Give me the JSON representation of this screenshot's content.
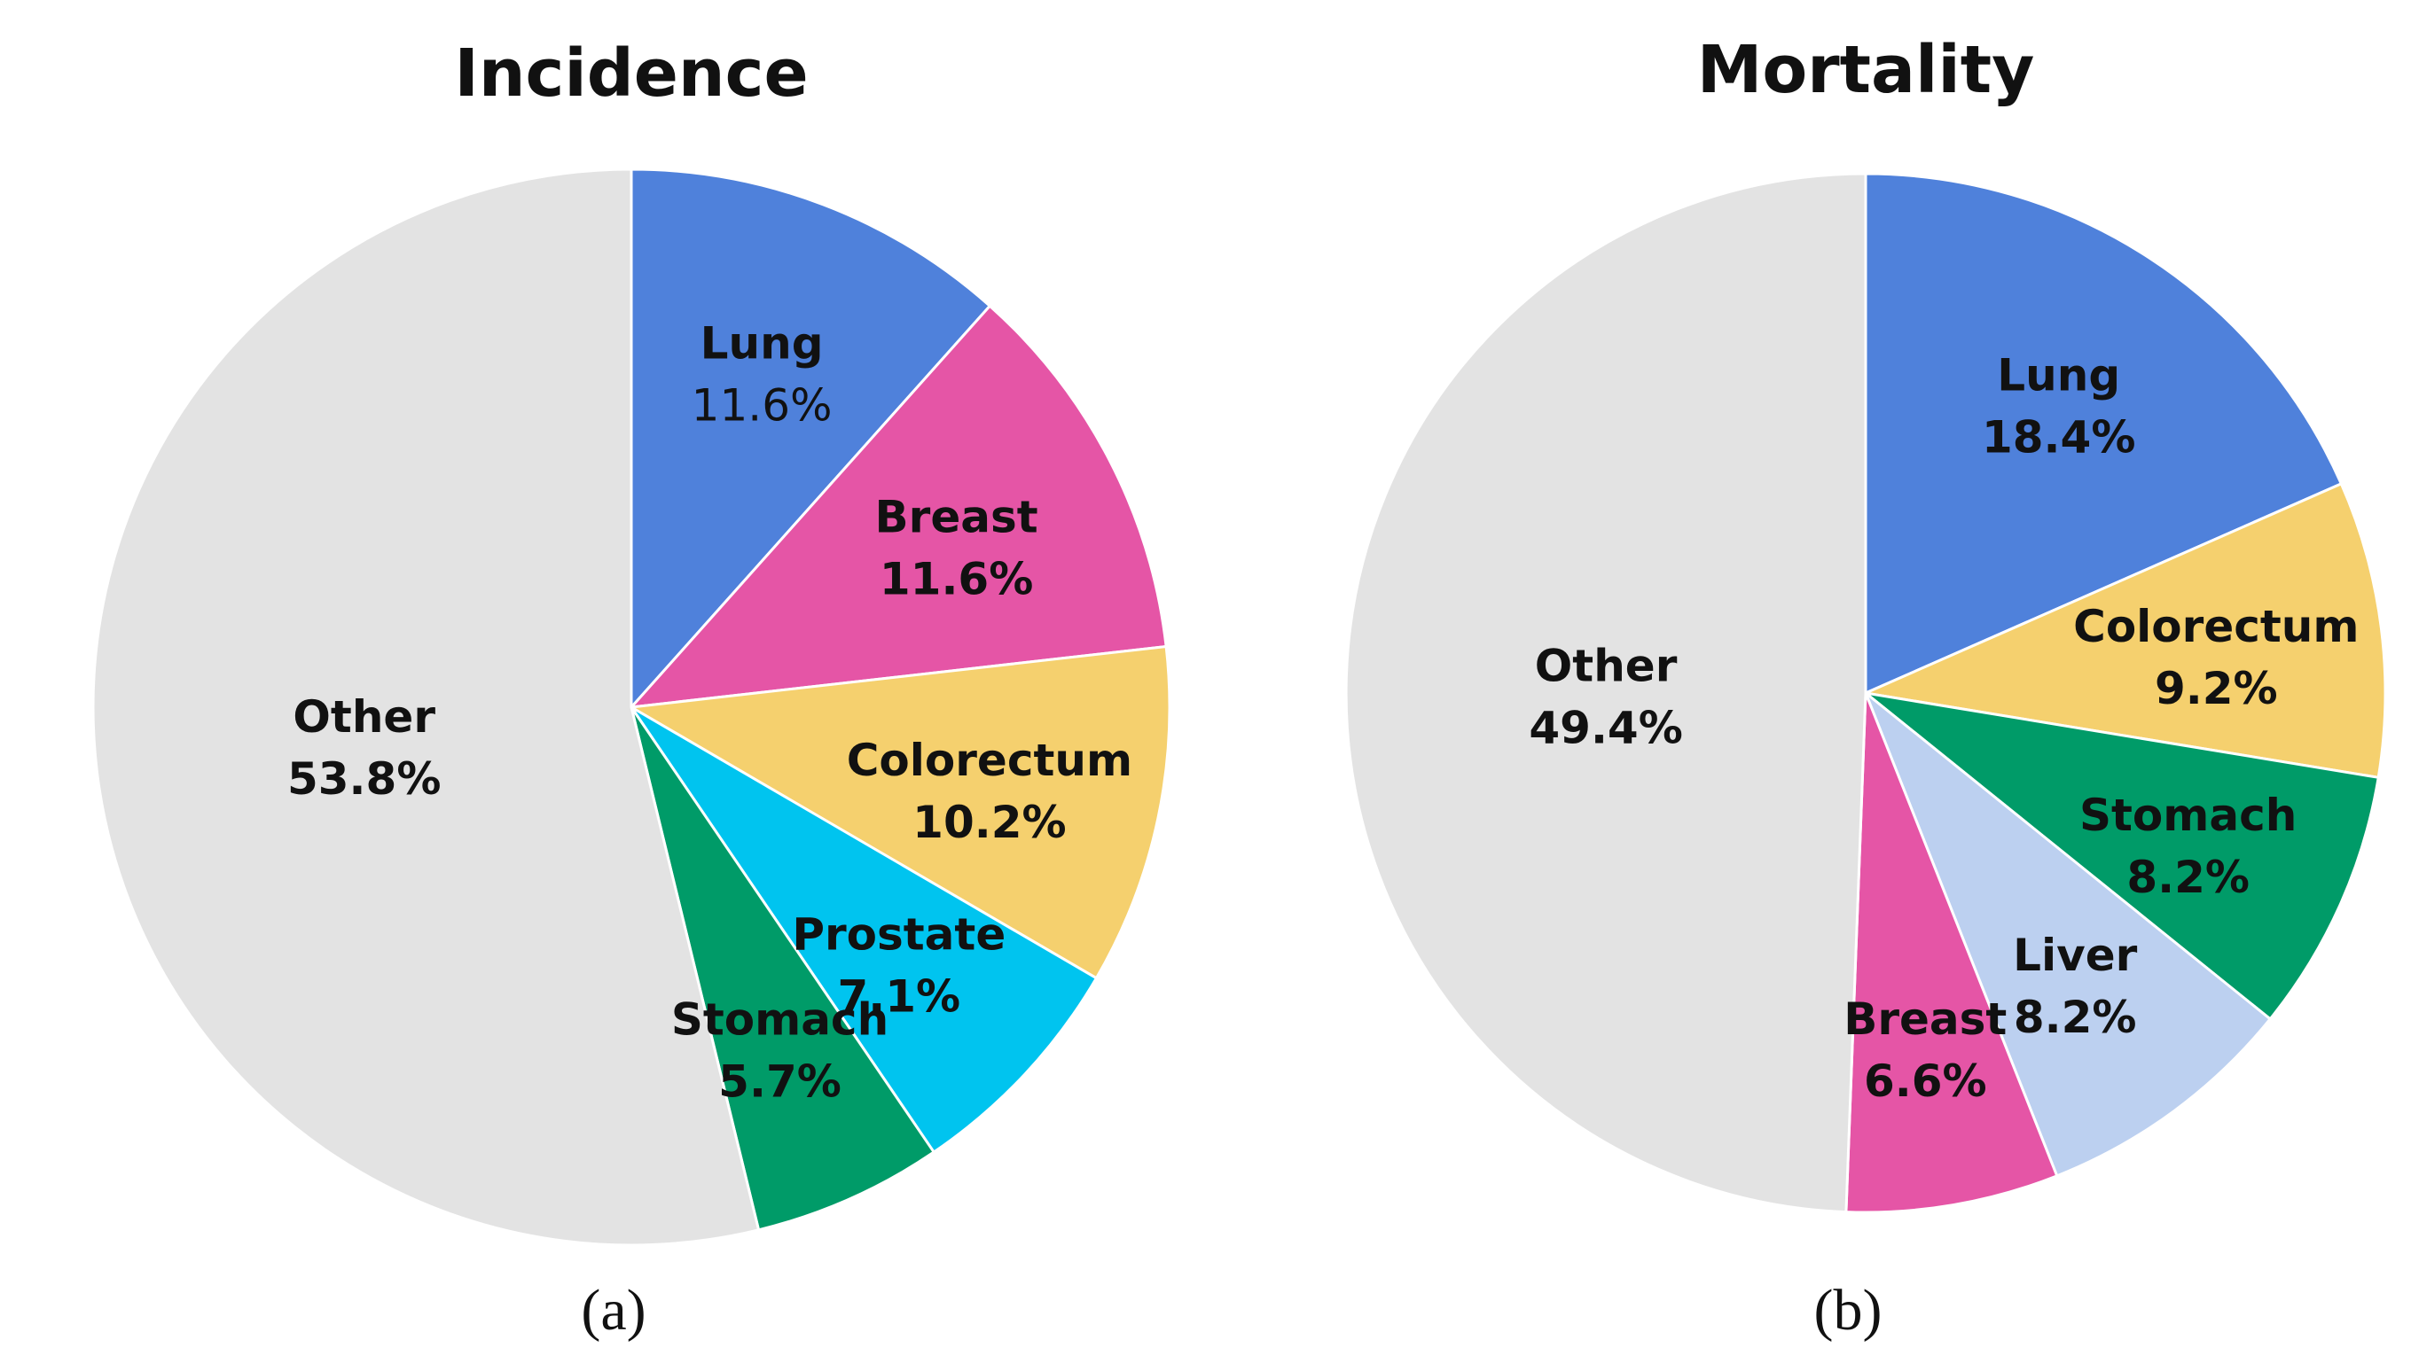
{
  "chart_data": [
    {
      "type": "pie",
      "title": "Incidence",
      "panel_label": "(a)",
      "slices": [
        {
          "name": "Lung",
          "value": 11.6,
          "label": "11.6%",
          "color": "#4f81db"
        },
        {
          "name": "Breast",
          "value": 11.6,
          "label": "11.6%",
          "color": "#e555a6"
        },
        {
          "name": "Colorectum",
          "value": 10.2,
          "label": "10.2%",
          "color": "#f5d06e"
        },
        {
          "name": "Prostate",
          "value": 7.1,
          "label": "7.1%",
          "color": "#00c4ef"
        },
        {
          "name": "Stomach",
          "value": 5.7,
          "label": "5.7%",
          "color": "#009b68"
        },
        {
          "name": "Other",
          "value": 53.8,
          "label": "53.8%",
          "color": "#e3e3e3"
        }
      ]
    },
    {
      "type": "pie",
      "title": "Mortality",
      "panel_label": "(b)",
      "slices": [
        {
          "name": "Lung",
          "value": 18.4,
          "label": "18.4%",
          "color": "#4f81db"
        },
        {
          "name": "Colorectum",
          "value": 9.2,
          "label": "9.2%",
          "color": "#f5d06e"
        },
        {
          "name": "Stomach",
          "value": 8.2,
          "label": "8.2%",
          "color": "#009b68"
        },
        {
          "name": "Liver",
          "value": 8.2,
          "label": "8.2%",
          "color": "#bcd0f0"
        },
        {
          "name": "Breast",
          "value": 6.6,
          "label": "6.6%",
          "color": "#e555a6"
        },
        {
          "name": "Other",
          "value": 49.4,
          "label": "49.4%",
          "color": "#e3e3e3"
        }
      ]
    }
  ]
}
